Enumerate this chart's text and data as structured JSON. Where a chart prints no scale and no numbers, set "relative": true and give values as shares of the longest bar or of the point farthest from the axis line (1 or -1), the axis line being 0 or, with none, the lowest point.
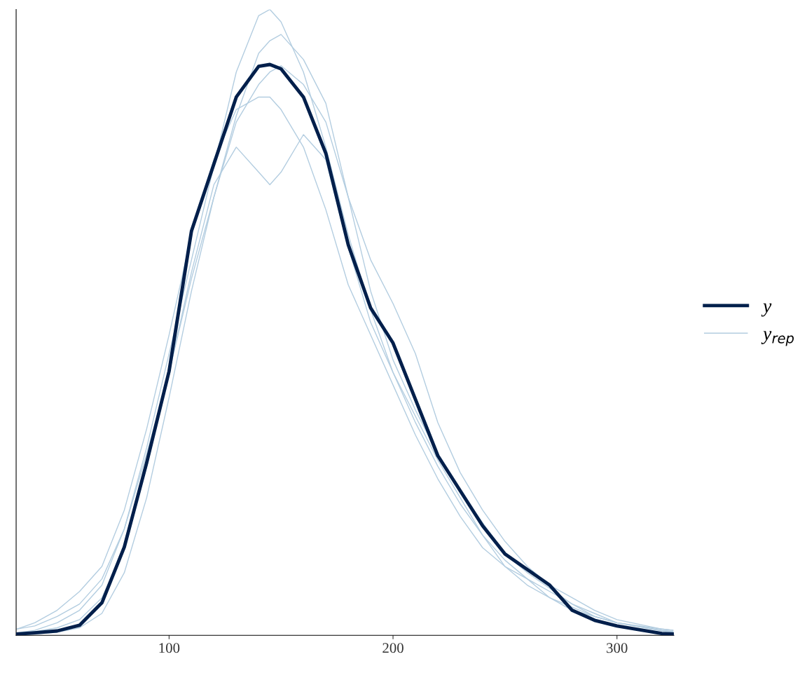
{
  "chart_data": {
    "type": "line",
    "relative": true,
    "tick_labels": "x",
    "grid": false,
    "legend": "right",
    "marker": "none",
    "line_style": "solid",
    "xlim": [
      31.7,
      325.4
    ],
    "xticks": [
      100,
      200,
      300
    ],
    "x": [
      32,
      40,
      50,
      60,
      70,
      80,
      90,
      100,
      110,
      120,
      130,
      140,
      145,
      150,
      160,
      170,
      180,
      190,
      200,
      210,
      220,
      230,
      240,
      250,
      260,
      270,
      280,
      290,
      300,
      320,
      325
    ],
    "series": [
      {
        "name": "y$_{rep}$",
        "color": "#b3cde0",
        "values": [
          0.004,
          0.008,
          0.02,
          0.04,
          0.08,
          0.17,
          0.3,
          0.45,
          0.6,
          0.75,
          0.9,
          0.99,
          1.0,
          0.98,
          0.9,
          0.78,
          0.64,
          0.52,
          0.42,
          0.34,
          0.27,
          0.21,
          0.16,
          0.12,
          0.09,
          0.06,
          0.04,
          0.03,
          0.02,
          0.01,
          0.008
        ]
      },
      {
        "color": "#b3cde0",
        "values": [
          0.01,
          0.015,
          0.03,
          0.05,
          0.09,
          0.17,
          0.29,
          0.42,
          0.58,
          0.72,
          0.78,
          0.74,
          0.72,
          0.74,
          0.8,
          0.76,
          0.62,
          0.5,
          0.42,
          0.35,
          0.28,
          0.22,
          0.16,
          0.11,
          0.08,
          0.06,
          0.045,
          0.03,
          0.02,
          0.008,
          0.006
        ]
      },
      {
        "color": "#b3cde0",
        "values": [
          0.001,
          0.002,
          0.005,
          0.012,
          0.035,
          0.1,
          0.22,
          0.38,
          0.55,
          0.7,
          0.82,
          0.88,
          0.9,
          0.91,
          0.88,
          0.82,
          0.7,
          0.6,
          0.53,
          0.45,
          0.34,
          0.26,
          0.2,
          0.15,
          0.11,
          0.08,
          0.06,
          0.04,
          0.025,
          0.01,
          0.008
        ]
      },
      {
        "color": "#b3cde0",
        "values": [
          0.01,
          0.02,
          0.04,
          0.07,
          0.11,
          0.2,
          0.33,
          0.48,
          0.64,
          0.76,
          0.84,
          0.86,
          0.86,
          0.84,
          0.78,
          0.68,
          0.56,
          0.48,
          0.4,
          0.32,
          0.25,
          0.19,
          0.14,
          0.11,
          0.09,
          0.07,
          0.05,
          0.03,
          0.02,
          0.007,
          0.005
        ]
      },
      {
        "color": "#b3cde0",
        "values": [
          0.003,
          0.006,
          0.012,
          0.025,
          0.06,
          0.14,
          0.27,
          0.42,
          0.57,
          0.7,
          0.83,
          0.93,
          0.95,
          0.96,
          0.92,
          0.85,
          0.7,
          0.55,
          0.44,
          0.36,
          0.29,
          0.23,
          0.18,
          0.13,
          0.1,
          0.075,
          0.05,
          0.035,
          0.02,
          0.008,
          0.006
        ]
      },
      {
        "name": "y",
        "color": "#011f4b",
        "values": [
          0.002,
          0.004,
          0.007,
          0.016,
          0.052,
          0.141,
          0.276,
          0.422,
          0.646,
          0.753,
          0.86,
          0.909,
          0.912,
          0.905,
          0.86,
          0.77,
          0.624,
          0.523,
          0.467,
          0.377,
          0.287,
          0.231,
          0.175,
          0.13,
          0.105,
          0.08,
          0.04,
          0.024,
          0.015,
          0.003,
          0.002
        ]
      }
    ]
  }
}
